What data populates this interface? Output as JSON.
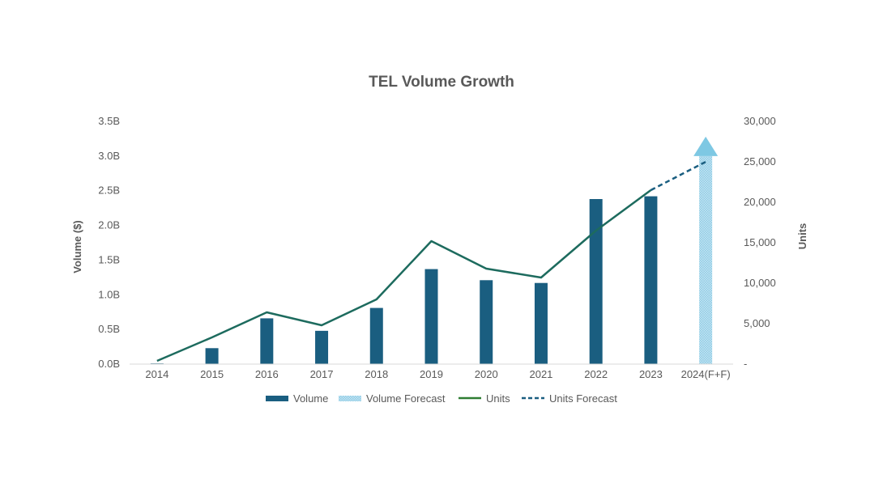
{
  "chart_data": {
    "type": "bar",
    "title": "TEL Volume Growth",
    "categories": [
      "2014",
      "2015",
      "2016",
      "2017",
      "2018",
      "2019",
      "2020",
      "2021",
      "2022",
      "2023",
      "2024(F+F)"
    ],
    "y_left": {
      "label": "Volume ($)",
      "range": [
        0,
        3.5
      ],
      "unit": "B",
      "ticks": [
        "0.0B",
        "0.5B",
        "1.0B",
        "1.5B",
        "2.0B",
        "2.5B",
        "3.0B",
        "3.5B"
      ]
    },
    "y_right": {
      "label": "Units",
      "range": [
        0,
        30000
      ],
      "ticks": [
        "-",
        "5,000",
        "10,000",
        "15,000",
        "20,000",
        "25,000",
        "30,000"
      ]
    },
    "series": [
      {
        "name": "Volume",
        "type": "bar",
        "axis": "left",
        "color": "#1a5e80",
        "values": [
          0.01,
          0.23,
          0.66,
          0.48,
          0.81,
          1.37,
          1.21,
          1.17,
          2.38,
          2.42,
          null
        ]
      },
      {
        "name": "Volume Forecast",
        "type": "bar",
        "axis": "left",
        "color": "#a9d8ec",
        "arrow_color": "#7ec8e3",
        "values": [
          null,
          null,
          null,
          null,
          null,
          null,
          null,
          null,
          null,
          null,
          3.0
        ]
      },
      {
        "name": "Units",
        "type": "line",
        "axis": "right",
        "color": "#1d6b5e",
        "values": [
          400,
          3300,
          6400,
          4800,
          8000,
          15200,
          11800,
          10700,
          16500,
          21500,
          null
        ]
      },
      {
        "name": "Units Forecast",
        "type": "line-dashed",
        "axis": "right",
        "color": "#1a5e80",
        "values": [
          null,
          null,
          null,
          null,
          null,
          null,
          null,
          null,
          null,
          21500,
          25000
        ]
      }
    ],
    "legend": {
      "position": "bottom",
      "entries": [
        "Volume",
        "Volume Forecast",
        "Units",
        "Units Forecast"
      ]
    },
    "grid": false
  }
}
